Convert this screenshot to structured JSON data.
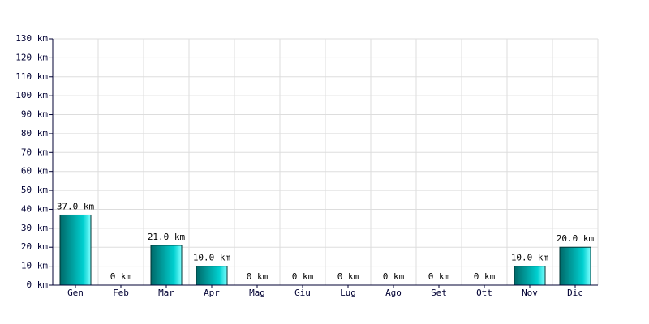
{
  "chart_data": {
    "type": "bar",
    "categories": [
      "Gen",
      "Feb",
      "Mar",
      "Apr",
      "Mag",
      "Giu",
      "Lug",
      "Ago",
      "Set",
      "Ott",
      "Nov",
      "Dic"
    ],
    "values": [
      37,
      0,
      21,
      10,
      0,
      0,
      0,
      0,
      0,
      0,
      10,
      20
    ],
    "value_labels": [
      "37.0 km",
      "0 km",
      "21.0 km",
      "10.0 km",
      "0 km",
      "0 km",
      "0 km",
      "0 km",
      "0 km",
      "0 km",
      "10.0 km",
      "20.0 km"
    ],
    "color": "#00d0d0",
    "ylim": [
      0,
      130
    ],
    "yticks": [
      {
        "value": 0,
        "label": "0 km"
      },
      {
        "value": 10,
        "label": "10 km"
      },
      {
        "value": 20,
        "label": "20 km"
      },
      {
        "value": 30,
        "label": "30 km"
      },
      {
        "value": 40,
        "label": "40 km"
      },
      {
        "value": 50,
        "label": "50 km"
      },
      {
        "value": 60,
        "label": "60 km"
      },
      {
        "value": 70,
        "label": "70 km"
      },
      {
        "value": 80,
        "label": "80 km"
      },
      {
        "value": 90,
        "label": "90 km"
      },
      {
        "value": 100,
        "label": "100 km"
      },
      {
        "value": 110,
        "label": "110 km"
      },
      {
        "value": 120,
        "label": "120 km"
      },
      {
        "value": 130,
        "label": "130 km"
      }
    ],
    "grid": true
  }
}
